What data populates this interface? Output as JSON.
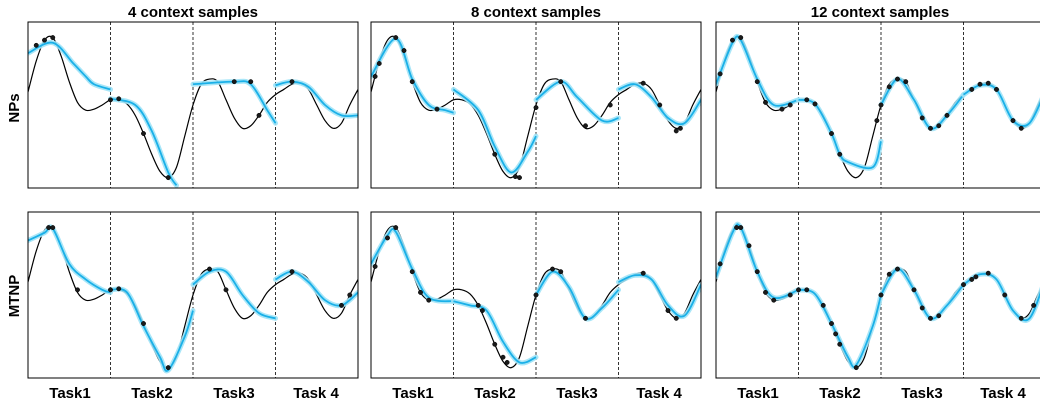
{
  "chart_data": {
    "type": "line",
    "column_titles": [
      "4 context samples",
      "8 context samples",
      "12 context samples"
    ],
    "row_labels": [
      "NPs",
      "MTNP"
    ],
    "task_labels": [
      "Task1",
      "Task2",
      "Task3",
      "Task 4"
    ],
    "x_range": [
      0,
      4
    ],
    "y_range": [
      -1.6,
      1.6
    ],
    "grid": false,
    "colors": {
      "ground_truth": "#000000",
      "prediction": "#1ab0e8",
      "uncertainty": "#9fe3f7",
      "context": "#1a1a1a"
    },
    "ground_truth": {
      "x": [
        0,
        0.1,
        0.2,
        0.3,
        0.4,
        0.5,
        0.6,
        0.7,
        0.8,
        0.9,
        1.0,
        1.1,
        1.2,
        1.3,
        1.4,
        1.5,
        1.6,
        1.7,
        1.8,
        1.9,
        2.0,
        2.1,
        2.2,
        2.3,
        2.4,
        2.5,
        2.6,
        2.7,
        2.8,
        2.9,
        3.0,
        3.1,
        3.2,
        3.3,
        3.4,
        3.5,
        3.6,
        3.7,
        3.8,
        3.9,
        4.0
      ],
      "y": [
        0.25,
        0.85,
        1.25,
        1.3,
        0.95,
        0.45,
        0.05,
        -0.1,
        -0.08,
        0.0,
        0.1,
        0.1,
        0.02,
        -0.2,
        -0.55,
        -0.95,
        -1.28,
        -1.4,
        -1.2,
        -0.6,
        0.0,
        0.4,
        0.5,
        0.45,
        0.1,
        -0.25,
        -0.45,
        -0.4,
        -0.2,
        0.05,
        0.2,
        0.3,
        0.4,
        0.42,
        0.3,
        0.0,
        -0.3,
        -0.45,
        -0.35,
        0.0,
        0.3
      ]
    },
    "panels": [
      {
        "row": "NPs",
        "column": "4 context samples",
        "context_points": [
          [
            0.1,
            1.15
          ],
          [
            0.2,
            1.25
          ],
          [
            0.3,
            1.3
          ],
          [
            1.0,
            0.1
          ],
          [
            1.1,
            0.12
          ],
          [
            1.4,
            -0.55
          ],
          [
            1.7,
            -1.4
          ],
          [
            2.5,
            0.45
          ],
          [
            2.7,
            0.45
          ],
          [
            2.8,
            -0.2
          ],
          [
            3.2,
            0.45
          ]
        ],
        "predictions": [
          {
            "x": [
              0,
              0.3,
              0.55,
              0.7,
              0.8,
              1.0
            ],
            "y": [
              1.0,
              1.2,
              0.8,
              0.55,
              0.4,
              0.3
            ]
          },
          {
            "x": [
              1.0,
              1.3,
              1.5,
              1.7,
              1.8
            ],
            "y": [
              0.12,
              0.0,
              -0.5,
              -1.3,
              -1.55
            ]
          },
          {
            "x": [
              2.0,
              2.5,
              2.7,
              2.9,
              3.0
            ],
            "y": [
              0.4,
              0.45,
              0.4,
              -0.1,
              -0.35
            ]
          },
          {
            "x": [
              3.0,
              3.2,
              3.4,
              3.6,
              3.8,
              4.0
            ],
            "y": [
              0.38,
              0.45,
              0.35,
              0.0,
              -0.2,
              -0.2
            ]
          }
        ]
      },
      {
        "row": "NPs",
        "column": "8 context samples",
        "context_points": [
          [
            0.05,
            0.55
          ],
          [
            0.1,
            0.8
          ],
          [
            0.3,
            1.3
          ],
          [
            0.4,
            1.05
          ],
          [
            0.5,
            0.45
          ],
          [
            0.8,
            -0.08
          ],
          [
            1.5,
            -0.95
          ],
          [
            1.8,
            -1.4
          ],
          [
            1.75,
            -1.38
          ],
          [
            2.0,
            -0.05
          ],
          [
            2.3,
            0.45
          ],
          [
            2.6,
            -0.4
          ],
          [
            2.9,
            0.0
          ],
          [
            3.3,
            0.42
          ],
          [
            3.5,
            0.0
          ],
          [
            3.7,
            -0.5
          ],
          [
            3.75,
            -0.45
          ]
        ],
        "predictions": [
          {
            "x": [
              0,
              0.3,
              0.5,
              0.7,
              0.9,
              1.0
            ],
            "y": [
              0.55,
              1.28,
              0.5,
              0.0,
              -0.1,
              -0.15
            ]
          },
          {
            "x": [
              1.0,
              1.3,
              1.5,
              1.7,
              1.9,
              2.0
            ],
            "y": [
              0.3,
              -0.1,
              -0.8,
              -1.3,
              -0.9,
              -0.6
            ]
          },
          {
            "x": [
              2.0,
              2.3,
              2.5,
              2.8,
              3.0
            ],
            "y": [
              0.1,
              0.45,
              0.15,
              -0.3,
              -0.25
            ]
          },
          {
            "x": [
              3.0,
              3.2,
              3.4,
              3.6,
              3.8,
              4.0
            ],
            "y": [
              0.3,
              0.4,
              0.15,
              -0.25,
              -0.35,
              0.1
            ]
          }
        ]
      },
      {
        "row": "NPs",
        "column": "12 context samples",
        "context_points": [
          [
            0.05,
            0.6
          ],
          [
            0.2,
            1.25
          ],
          [
            0.3,
            1.3
          ],
          [
            0.5,
            0.45
          ],
          [
            0.6,
            0.05
          ],
          [
            0.8,
            -0.08
          ],
          [
            0.9,
            0.0
          ],
          [
            1.1,
            0.1
          ],
          [
            1.2,
            0.02
          ],
          [
            1.4,
            -0.55
          ],
          [
            1.5,
            -0.95
          ],
          [
            1.95,
            -0.3
          ],
          [
            2.0,
            0.0
          ],
          [
            2.1,
            0.35
          ],
          [
            2.2,
            0.5
          ],
          [
            2.3,
            0.45
          ],
          [
            2.5,
            -0.25
          ],
          [
            2.6,
            -0.45
          ],
          [
            2.7,
            -0.4
          ],
          [
            2.8,
            -0.2
          ],
          [
            3.1,
            0.3
          ],
          [
            3.2,
            0.4
          ],
          [
            3.3,
            0.42
          ],
          [
            3.4,
            0.3
          ],
          [
            3.6,
            -0.3
          ],
          [
            3.7,
            -0.45
          ]
        ],
        "predictions": [
          {
            "x": [
              0,
              0.2,
              0.3,
              0.5,
              0.7,
              1.0
            ],
            "y": [
              0.4,
              1.2,
              1.25,
              0.5,
              0.0,
              0.1
            ]
          },
          {
            "x": [
              1.0,
              1.2,
              1.4,
              1.5,
              1.6,
              1.9,
              2.0
            ],
            "y": [
              0.1,
              0.02,
              -0.55,
              -0.95,
              -1.1,
              -1.2,
              -0.7
            ]
          },
          {
            "x": [
              2.0,
              2.2,
              2.4,
              2.6,
              2.8,
              3.0
            ],
            "y": [
              0.0,
              0.5,
              0.1,
              -0.45,
              -0.2,
              0.2
            ]
          },
          {
            "x": [
              3.0,
              3.2,
              3.4,
              3.6,
              3.8,
              4.0
            ],
            "y": [
              0.2,
              0.38,
              0.3,
              -0.3,
              -0.35,
              0.3
            ]
          }
        ]
      },
      {
        "row": "MTNP",
        "column": "4 context samples",
        "context_points": [
          [
            0.25,
            1.3
          ],
          [
            0.3,
            1.3
          ],
          [
            0.6,
            0.1
          ],
          [
            1.0,
            0.1
          ],
          [
            1.1,
            0.12
          ],
          [
            1.4,
            -0.55
          ],
          [
            1.7,
            -1.4
          ],
          [
            2.2,
            0.5
          ],
          [
            2.4,
            0.1
          ],
          [
            3.2,
            0.45
          ],
          [
            3.8,
            -0.2
          ],
          [
            3.9,
            0.0
          ]
        ],
        "predictions": [
          {
            "x": [
              0,
              0.2,
              0.3,
              0.5,
              0.7,
              0.9,
              1.0
            ],
            "y": [
              1.05,
              1.2,
              1.28,
              0.6,
              0.3,
              0.1,
              0.05
            ]
          },
          {
            "x": [
              1.0,
              1.2,
              1.4,
              1.6,
              1.7,
              1.9,
              2.0
            ],
            "y": [
              0.1,
              0.05,
              -0.6,
              -1.2,
              -1.45,
              -0.8,
              -0.3
            ]
          },
          {
            "x": [
              2.0,
              2.2,
              2.4,
              2.6,
              2.8,
              3.0
            ],
            "y": [
              0.2,
              0.45,
              0.45,
              0.0,
              -0.35,
              -0.45
            ]
          },
          {
            "x": [
              3.0,
              3.2,
              3.4,
              3.6,
              3.8,
              4.0
            ],
            "y": [
              0.3,
              0.45,
              0.25,
              -0.1,
              -0.2,
              0.05
            ]
          }
        ]
      },
      {
        "row": "MTNP",
        "column": "8 context samples",
        "context_points": [
          [
            0.05,
            0.55
          ],
          [
            0.2,
            1.1
          ],
          [
            0.3,
            1.3
          ],
          [
            0.5,
            0.45
          ],
          [
            0.6,
            0.05
          ],
          [
            0.7,
            -0.1
          ],
          [
            1.3,
            -0.2
          ],
          [
            1.35,
            -0.3
          ],
          [
            1.5,
            -0.95
          ],
          [
            1.6,
            -1.2
          ],
          [
            1.65,
            -1.3
          ],
          [
            2.0,
            0.0
          ],
          [
            2.2,
            0.5
          ],
          [
            2.3,
            0.45
          ],
          [
            2.6,
            -0.45
          ],
          [
            3.3,
            0.42
          ],
          [
            3.6,
            -0.3
          ],
          [
            3.7,
            -0.45
          ]
        ],
        "predictions": [
          {
            "x": [
              0,
              0.2,
              0.3,
              0.5,
              0.7,
              1.0
            ],
            "y": [
              0.6,
              1.15,
              1.22,
              0.5,
              -0.05,
              -0.12
            ]
          },
          {
            "x": [
              1.0,
              1.2,
              1.4,
              1.6,
              1.8,
              2.0
            ],
            "y": [
              -0.12,
              -0.2,
              -0.3,
              -0.9,
              -1.3,
              -1.2
            ]
          },
          {
            "x": [
              2.0,
              2.2,
              2.4,
              2.6,
              2.8,
              3.0
            ],
            "y": [
              0.0,
              0.45,
              0.15,
              -0.45,
              -0.25,
              0.1
            ]
          },
          {
            "x": [
              3.0,
              3.2,
              3.4,
              3.6,
              3.8,
              4.0
            ],
            "y": [
              0.25,
              0.38,
              0.3,
              -0.2,
              -0.4,
              0.2
            ]
          }
        ]
      },
      {
        "row": "MTNP",
        "column": "12 context samples",
        "context_points": [
          [
            0.05,
            0.6
          ],
          [
            0.25,
            1.3
          ],
          [
            0.3,
            1.3
          ],
          [
            0.4,
            0.95
          ],
          [
            0.5,
            0.45
          ],
          [
            0.6,
            0.05
          ],
          [
            0.7,
            -0.1
          ],
          [
            0.9,
            0.0
          ],
          [
            1.0,
            0.1
          ],
          [
            1.1,
            0.1
          ],
          [
            1.3,
            -0.2
          ],
          [
            1.4,
            -0.55
          ],
          [
            1.45,
            -0.75
          ],
          [
            1.5,
            -0.95
          ],
          [
            1.7,
            -1.4
          ],
          [
            2.0,
            0.0
          ],
          [
            2.1,
            0.4
          ],
          [
            2.2,
            0.5
          ],
          [
            2.4,
            0.1
          ],
          [
            2.5,
            -0.25
          ],
          [
            2.6,
            -0.45
          ],
          [
            2.7,
            -0.4
          ],
          [
            3.0,
            0.2
          ],
          [
            3.1,
            0.3
          ],
          [
            3.15,
            0.35
          ],
          [
            3.3,
            0.42
          ],
          [
            3.5,
            0.0
          ],
          [
            3.7,
            -0.45
          ],
          [
            3.85,
            -0.2
          ]
        ],
        "predictions": [
          {
            "x": [
              0,
              0.2,
              0.3,
              0.5,
              0.7,
              1.0
            ],
            "y": [
              0.35,
              1.2,
              1.3,
              0.45,
              -0.05,
              0.1
            ]
          },
          {
            "x": [
              1.0,
              1.2,
              1.4,
              1.6,
              1.7,
              1.9,
              2.0
            ],
            "y": [
              0.1,
              0.02,
              -0.55,
              -1.2,
              -1.35,
              -0.6,
              0.0
            ]
          },
          {
            "x": [
              2.0,
              2.2,
              2.4,
              2.6,
              2.8,
              3.0
            ],
            "y": [
              0.0,
              0.5,
              0.1,
              -0.45,
              -0.2,
              0.2
            ]
          },
          {
            "x": [
              3.0,
              3.2,
              3.4,
              3.6,
              3.8,
              4.0
            ],
            "y": [
              0.2,
              0.4,
              0.3,
              -0.3,
              -0.45,
              0.35
            ]
          }
        ]
      }
    ]
  }
}
